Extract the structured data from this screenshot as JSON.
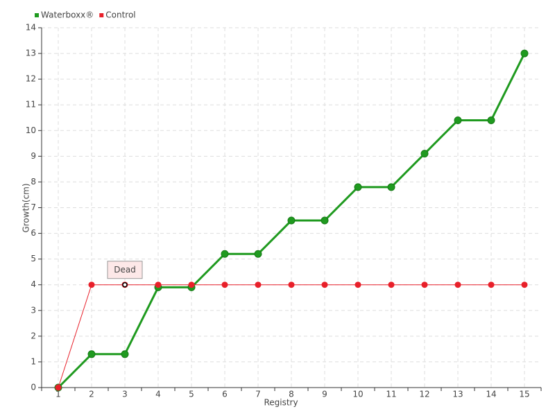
{
  "chart_data": {
    "type": "line",
    "categories": [
      "1",
      "2",
      "3",
      "4",
      "5",
      "6",
      "7",
      "8",
      "9",
      "10",
      "11",
      "12",
      "13",
      "14",
      "15"
    ],
    "series": [
      {
        "name": "Waterboxx®",
        "color": "#1f9a1f",
        "values": [
          0,
          1.3,
          1.3,
          3.9,
          3.9,
          5.2,
          5.2,
          6.5,
          6.5,
          7.8,
          7.8,
          9.1,
          10.4,
          10.4,
          13
        ]
      },
      {
        "name": "Control",
        "color": "#e8202a",
        "values": [
          0,
          4,
          4,
          4,
          4,
          4,
          4,
          4,
          4,
          4,
          4,
          4,
          4,
          4,
          4
        ]
      }
    ],
    "x_label": "Registry",
    "y_label": "Growth(cm)",
    "ylim": [
      0,
      14
    ],
    "yticks": [
      0,
      1,
      2,
      3,
      4,
      5,
      6,
      7,
      8,
      9,
      10,
      11,
      12,
      13,
      14
    ],
    "grid": true,
    "legend": "top-left",
    "annotations": [
      {
        "text": "Dead",
        "series": "Control",
        "category": "3"
      }
    ]
  }
}
